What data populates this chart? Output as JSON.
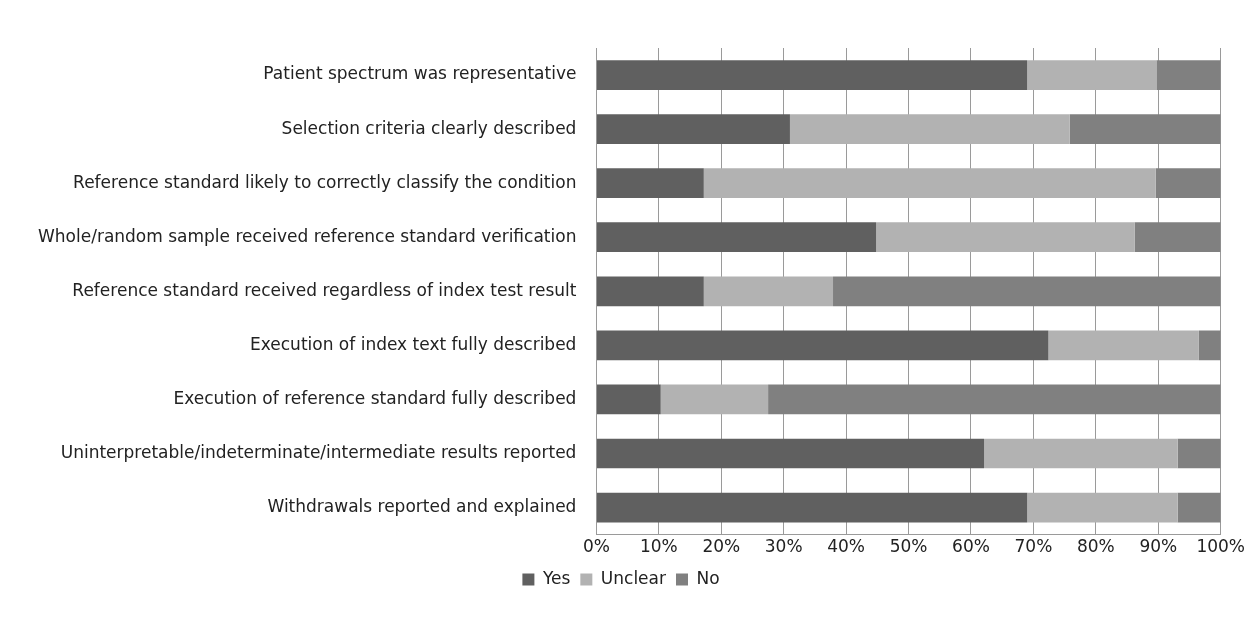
{
  "chart_data": {
    "type": "bar",
    "orientation": "horizontal",
    "stacked": true,
    "categories": [
      "Patient spectrum was representative",
      "Selection criteria clearly described",
      "Reference standard likely to correctly classify the condition",
      "Whole/random sample received reference standard verification",
      "Reference standard received regardless of index test result",
      "Execution of index text fully described",
      "Execution of reference standard fully described",
      "Uninterpretable/indeterminate/intermediate results reported",
      "Withdrawals reported and explained"
    ],
    "series": [
      {
        "name": "Yes",
        "color": "#606060",
        "values": [
          69.0,
          31.0,
          17.2,
          44.8,
          17.2,
          72.4,
          10.3,
          62.1,
          69.0
        ]
      },
      {
        "name": "Unclear",
        "color": "#b2b2b2",
        "values": [
          20.7,
          44.8,
          72.4,
          41.4,
          20.7,
          24.1,
          17.2,
          31.0,
          24.1
        ]
      },
      {
        "name": "No",
        "color": "#808080",
        "values": [
          10.3,
          24.2,
          10.4,
          13.8,
          62.1,
          3.5,
          72.5,
          6.9,
          6.9
        ]
      }
    ],
    "xlim": [
      0,
      100
    ],
    "xticks": [
      {
        "value": 0,
        "label": "0%"
      },
      {
        "value": 10,
        "label": "10%"
      },
      {
        "value": 20,
        "label": "20%"
      },
      {
        "value": 30,
        "label": "30%"
      },
      {
        "value": 40,
        "label": "40%"
      },
      {
        "value": 50,
        "label": "50%"
      },
      {
        "value": 60,
        "label": "60%"
      },
      {
        "value": 70,
        "label": "70%"
      },
      {
        "value": 80,
        "label": "80%"
      },
      {
        "value": 90,
        "label": "90%"
      },
      {
        "value": 100,
        "label": "100%"
      }
    ],
    "grid": "x",
    "legend": "bottom"
  }
}
